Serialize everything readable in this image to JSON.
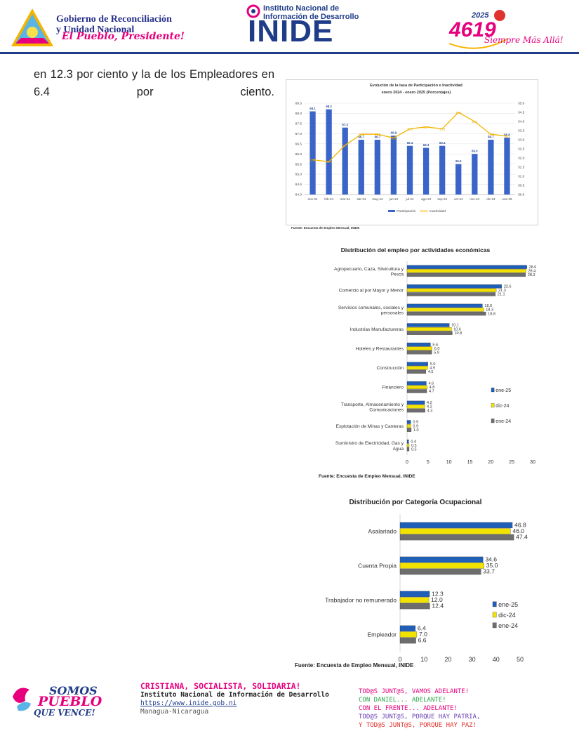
{
  "header": {
    "gov_line1": "Gobierno de Reconciliación",
    "gov_line2": "y Unidad Nacional",
    "slogan_script": "El Pueblo, Presidente!",
    "inide_line1": "Instituto Nacional de",
    "inide_line2": "Información de Desarrollo",
    "inide_logo": "INIDE",
    "year": "2025",
    "anniv": "4619",
    "anniv_tag": "Siempre Más Allá!"
  },
  "body_text": "en 12.3 por ciento y la de los Empleadores en 6.4 por ciento.",
  "charts": {
    "c1_title_line1": "Evolución de la tasa de Participación e Inactividad",
    "c1_title_line2": "enero 2024 - enero 2025  (Porcentajes)",
    "c1_source": "Fuente: Encuesta de Empleo Mensual, INIDE",
    "c2_title": "Distribución del empleo por actividades económicas",
    "c2_source": "Fuente: Encuesta de Empleo Mensual, INIDE",
    "c3_title": "Distribución por Categoría Ocupacional",
    "c3_source": "Fuente: Encuesta de Empleo Mensual, INIDE"
  },
  "chart_data": [
    {
      "type": "bar",
      "title": "Evolución de la tasa de Participación e Inactividad",
      "subtitle": "enero 2024 - enero 2025  (Porcentajes)",
      "categories": [
        "ene-24",
        "feb-24",
        "mar-24",
        "abr-24",
        "may-24",
        "jun-24",
        "jul-24",
        "ago-24",
        "sep-24",
        "oct-24",
        "nov-24",
        "dic-24",
        "ene-25"
      ],
      "series": [
        {
          "name": "Participación",
          "type": "bar",
          "axis": "left",
          "color": "#3a64c8",
          "values": [
            68.1,
            68.2,
            67.3,
            66.7,
            66.7,
            66.9,
            66.4,
            66.3,
            66.4,
            65.5,
            66.0,
            66.7,
            66.8
          ]
        },
        {
          "name": "Inactividad",
          "type": "line",
          "axis": "right",
          "color": "#f5b800",
          "values": [
            31.9,
            31.8,
            32.7,
            33.3,
            33.3,
            33.1,
            33.6,
            33.7,
            33.6,
            34.5,
            34.0,
            33.3,
            33.2
          ]
        }
      ],
      "ylim_left": [
        64.0,
        68.5
      ],
      "ylim_right": [
        30.0,
        35.0
      ],
      "yticks_left": [
        "64.0",
        "64.5",
        "65.0",
        "65.5",
        "66.0",
        "66.5",
        "67.0",
        "67.5",
        "68.0",
        "68.5"
      ],
      "yticks_right": [
        "30.0",
        "30.5",
        "31.0",
        "31.5",
        "32.0",
        "32.5",
        "33.0",
        "33.5",
        "34.0",
        "34.5",
        "35.0"
      ],
      "legend": "bottom"
    },
    {
      "type": "bar",
      "orientation": "horizontal",
      "title": "Distribución del empleo por actividades económicas",
      "categories": [
        "Agropecuario, Caza, Silvicultura y Pesca",
        "Comercio al por Mayor y Menor",
        "Servicios comunales, sociales y personales",
        "Industrias Manufactureras",
        "Hoteles y Restaurantes",
        "Construcción",
        "Financiero",
        "Transporte, Almacenamiento y Comunicaciones",
        "Explotación de Minas y Canteras",
        "Suministro de Electricidad, Gas y Agua"
      ],
      "series": [
        {
          "name": "ene-25",
          "color": "#1f5fb8",
          "values": [
            28.6,
            22.6,
            18.0,
            10.1,
            5.6,
            5.0,
            4.6,
            4.2,
            0.9,
            0.4
          ]
        },
        {
          "name": "dic-24",
          "color": "#f2e200",
          "values": [
            28.4,
            21.3,
            18.3,
            10.6,
            6.0,
            4.9,
            4.8,
            4.2,
            0.9,
            0.5
          ]
        },
        {
          "name": "ene-24",
          "color": "#6d6d6d",
          "values": [
            28.3,
            21.1,
            18.8,
            10.8,
            5.9,
            4.5,
            4.7,
            4.3,
            1.0,
            0.5
          ]
        }
      ],
      "xlim": [
        0,
        30
      ],
      "xticks": [
        "0",
        "5",
        "10",
        "15",
        "20",
        "25",
        "30"
      ],
      "legend": "right"
    },
    {
      "type": "bar",
      "orientation": "horizontal",
      "title": "Distribución por Categoría Ocupacional",
      "categories": [
        "Asalariado",
        "Cuenta Propia",
        "Trabajador no remunerado",
        "Empleador"
      ],
      "series": [
        {
          "name": "ene-25",
          "color": "#1f5fb8",
          "values": [
            46.8,
            34.6,
            12.3,
            6.4
          ]
        },
        {
          "name": "dic-24",
          "color": "#f2e200",
          "values": [
            46.0,
            35.0,
            12.0,
            7.0
          ]
        },
        {
          "name": "ene-24",
          "color": "#6d6d6d",
          "values": [
            47.4,
            33.7,
            12.4,
            6.6
          ]
        }
      ],
      "xlim": [
        0,
        50
      ],
      "xticks": [
        "0",
        "10",
        "20",
        "30",
        "40",
        "50"
      ],
      "legend": "right"
    }
  ],
  "footer": {
    "motto": "CRISTIANA, SOCIALISTA, SOLIDARIA!",
    "institute": "Instituto Nacional de Información de Desarrollo",
    "url": "https://www.inide.gob.ni",
    "city": "Managua-Nicaragua",
    "logo_line1": "SOMOS",
    "logo_line2": "PUEBLO",
    "logo_line3": "QUE VENCE!",
    "slogans": [
      {
        "text": "TOD@S JUNT@S, VAMOS ADELANTE!",
        "color": "#e6007e"
      },
      {
        "text": "CON DANIEL... ADELANTE!",
        "color": "#2aa84a"
      },
      {
        "text": "CON EL FRENTE... ADELANTE!",
        "color": "#e6007e"
      },
      {
        "text": "TOD@S JUNT@S, PORQUE HAY PATRIA,",
        "color": "#6a3fb5"
      },
      {
        "text": "Y TOD@S JUNT@S, PORQUE HAY PAZ!",
        "color": "#e0332d"
      }
    ]
  }
}
